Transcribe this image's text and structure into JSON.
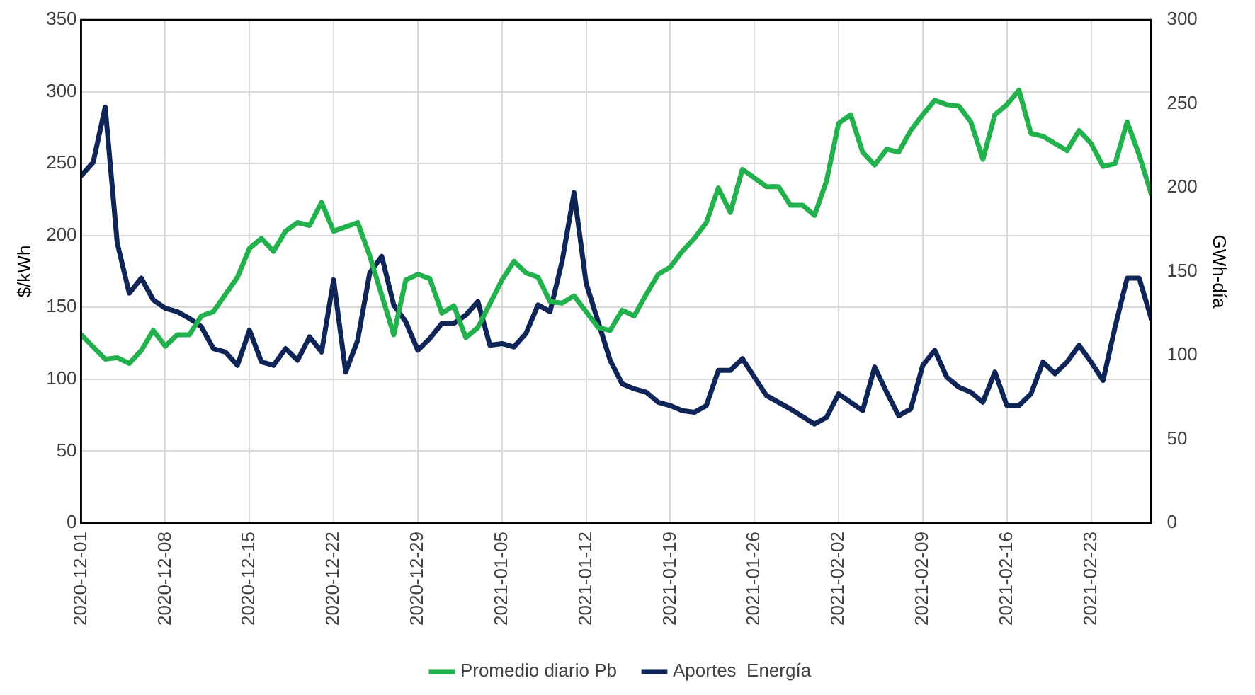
{
  "chart_data": {
    "type": "line",
    "ylabel": "$/kWh",
    "y2label": "GWh-día",
    "xlim": [
      "2020-12-01",
      "2021-02-28"
    ],
    "xticks": [
      "2020-12-01",
      "2020-12-08",
      "2020-12-15",
      "2020-12-22",
      "2020-12-29",
      "2021-01-05",
      "2021-01-12",
      "2021-01-19",
      "2021-01-26",
      "2021-02-02",
      "2021-02-09",
      "2021-02-16",
      "2021-02-23"
    ],
    "ylim": [
      0,
      350
    ],
    "yticks": [
      0,
      50,
      100,
      150,
      200,
      250,
      300,
      350
    ],
    "y2lim": [
      0,
      300
    ],
    "y2ticks": [
      0,
      50,
      100,
      150,
      200,
      250,
      300
    ],
    "grid": true,
    "legend": "bottom",
    "marker": "none",
    "line_style": "solid",
    "series": [
      {
        "name": "Promedio diario Pb",
        "color": "#22b14c",
        "x": [
          "2020-12-01",
          "2020-12-03",
          "2020-12-04",
          "2020-12-05",
          "2020-12-06",
          "2020-12-07",
          "2020-12-08",
          "2020-12-09",
          "2020-12-10",
          "2020-12-11",
          "2020-12-12",
          "2020-12-13",
          "2020-12-14",
          "2020-12-15",
          "2020-12-16",
          "2020-12-17",
          "2020-12-18",
          "2020-12-19",
          "2020-12-20",
          "2020-12-21",
          "2020-12-22",
          "2020-12-24",
          "2020-12-25",
          "2020-12-27",
          "2020-12-28",
          "2020-12-29",
          "2020-12-30",
          "2020-12-31",
          "2021-01-01",
          "2021-01-02",
          "2021-01-03",
          "2021-01-05",
          "2021-01-06",
          "2021-01-07",
          "2021-01-08",
          "2021-01-09",
          "2021-01-10",
          "2021-01-11",
          "2021-01-13",
          "2021-01-14",
          "2021-01-15",
          "2021-01-16",
          "2021-01-17",
          "2021-01-18",
          "2021-01-19",
          "2021-01-20",
          "2021-01-21",
          "2021-01-22",
          "2021-01-23",
          "2021-01-24",
          "2021-01-25",
          "2021-01-27",
          "2021-01-28",
          "2021-01-29",
          "2021-01-30",
          "2021-01-31",
          "2021-02-01",
          "2021-02-02",
          "2021-02-03",
          "2021-02-04",
          "2021-02-05",
          "2021-02-06",
          "2021-02-07",
          "2021-02-08",
          "2021-02-09",
          "2021-02-10",
          "2021-02-11",
          "2021-02-12",
          "2021-02-13",
          "2021-02-14",
          "2021-02-15",
          "2021-02-16",
          "2021-02-17",
          "2021-02-18",
          "2021-02-19",
          "2021-02-20",
          "2021-02-21",
          "2021-02-22",
          "2021-02-23",
          "2021-02-24",
          "2021-02-25",
          "2021-02-26",
          "2021-02-27",
          "2021-02-28"
        ],
        "values": [
          131,
          114,
          115,
          111,
          120,
          134,
          123,
          131,
          131,
          144,
          147,
          159,
          171,
          191,
          198,
          189,
          203,
          209,
          207,
          223,
          203,
          209,
          186,
          131,
          169,
          173,
          170,
          146,
          151,
          129,
          136,
          169,
          182,
          174,
          171,
          154,
          153,
          158,
          136,
          134,
          148,
          144,
          159,
          173,
          178,
          189,
          198,
          209,
          233,
          216,
          246,
          234,
          234,
          221,
          221,
          214,
          238,
          278,
          284,
          258,
          249,
          260,
          258,
          273,
          284,
          294,
          291,
          290,
          279,
          253,
          284,
          291,
          301,
          271,
          269,
          264,
          259,
          273,
          264,
          248,
          250,
          279,
          256,
          229
        ]
      },
      {
        "name": "Aportes  Energía",
        "color": "#0f2557",
        "axis": "y2",
        "x": [
          "2020-12-01",
          "2020-12-02",
          "2020-12-03",
          "2020-12-04",
          "2020-12-05",
          "2020-12-06",
          "2020-12-07",
          "2020-12-08",
          "2020-12-09",
          "2020-12-10",
          "2020-12-11",
          "2020-12-12",
          "2020-12-13",
          "2020-12-14",
          "2020-12-15",
          "2020-12-16",
          "2020-12-17",
          "2020-12-18",
          "2020-12-19",
          "2020-12-20",
          "2020-12-21",
          "2020-12-22",
          "2020-12-23",
          "2020-12-24",
          "2020-12-25",
          "2020-12-26",
          "2020-12-27",
          "2020-12-28",
          "2020-12-29",
          "2020-12-30",
          "2020-12-31",
          "2021-01-01",
          "2021-01-02",
          "2021-01-03",
          "2021-01-04",
          "2021-01-05",
          "2021-01-06",
          "2021-01-07",
          "2021-01-08",
          "2021-01-09",
          "2021-01-10",
          "2021-01-11",
          "2021-01-12",
          "2021-01-13",
          "2021-01-14",
          "2021-01-15",
          "2021-01-16",
          "2021-01-17",
          "2021-01-18",
          "2021-01-19",
          "2021-01-20",
          "2021-01-21",
          "2021-01-22",
          "2021-01-23",
          "2021-01-24",
          "2021-01-25",
          "2021-01-26",
          "2021-01-27",
          "2021-01-28",
          "2021-01-29",
          "2021-01-31",
          "2021-02-01",
          "2021-02-02",
          "2021-02-03",
          "2021-02-04",
          "2021-02-05",
          "2021-02-06",
          "2021-02-07",
          "2021-02-08",
          "2021-02-09",
          "2021-02-10",
          "2021-02-11",
          "2021-02-12",
          "2021-02-13",
          "2021-02-14",
          "2021-02-15",
          "2021-02-16",
          "2021-02-17",
          "2021-02-18",
          "2021-02-19",
          "2021-02-20",
          "2021-02-21",
          "2021-02-22",
          "2021-02-23",
          "2021-02-24",
          "2021-02-25",
          "2021-02-26",
          "2021-02-27",
          "2021-02-28"
        ],
        "values": [
          207,
          215,
          248,
          167,
          137,
          146,
          133,
          128,
          126,
          122,
          117,
          104,
          102,
          94,
          115,
          96,
          94,
          104,
          97,
          111,
          102,
          145,
          90,
          109,
          149,
          159,
          130,
          120,
          103,
          110,
          119,
          119,
          124,
          132,
          106,
          107,
          105,
          113,
          130,
          126,
          156,
          197,
          143,
          120,
          97,
          83,
          80,
          78,
          72,
          70,
          67,
          66,
          70,
          91,
          91,
          98,
          87,
          76,
          72,
          68,
          59,
          63,
          77,
          72,
          67,
          93,
          78,
          64,
          68,
          94,
          103,
          87,
          81,
          78,
          72,
          90,
          70,
          70,
          77,
          96,
          89,
          96,
          106,
          96,
          85,
          117,
          146,
          146,
          122
        ]
      }
    ]
  }
}
